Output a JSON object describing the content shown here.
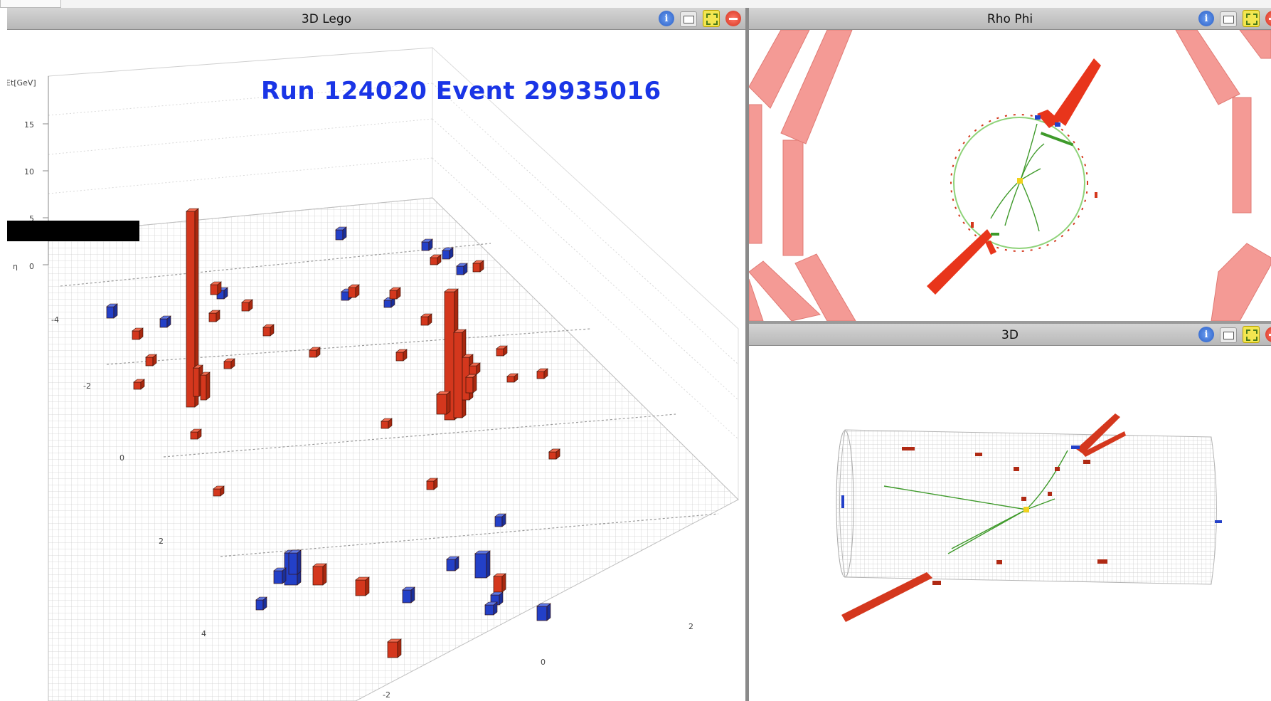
{
  "panels": {
    "lego": {
      "title": "3D Lego"
    },
    "rhophi": {
      "title": "Rho Phi"
    },
    "threed": {
      "title": "3D"
    }
  },
  "buttons": {
    "info_glyph": "i",
    "icons": [
      "info-icon",
      "undock-icon",
      "maximize-icon",
      "close-icon"
    ]
  },
  "event": {
    "run_label": "Run 124020  Event 29935016"
  },
  "lego_axes": {
    "z_title": "Et[GeV]",
    "z_ticks": [
      "15",
      "10",
      "5",
      "0"
    ],
    "eta_title": "η",
    "eta_ticks": [
      "-4",
      "-2",
      "0",
      "2",
      "4"
    ],
    "phi_ticks": [
      "2",
      "0",
      "-2"
    ]
  },
  "colors": {
    "ecal": "#d4371d",
    "hcal": "#2340c8",
    "track": "#3e9a2a",
    "muon_chamber": "#f49a95",
    "vertex": "#f0d21c",
    "titlebar": "#c4c4c4",
    "run_label": "#1a35e6"
  }
}
